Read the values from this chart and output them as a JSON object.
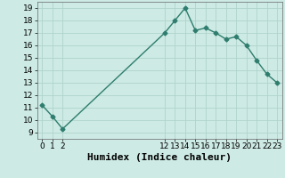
{
  "x": [
    0,
    1,
    2,
    12,
    13,
    14,
    15,
    16,
    17,
    18,
    19,
    20,
    21,
    22,
    23
  ],
  "y": [
    11.2,
    10.3,
    9.3,
    17.0,
    18.0,
    19.0,
    17.2,
    17.4,
    17.0,
    16.5,
    16.7,
    16.0,
    14.8,
    13.7,
    13.0
  ],
  "xlabel": "Humidex (Indice chaleur)",
  "xlim": [
    -0.5,
    23.5
  ],
  "ylim": [
    8.5,
    19.5
  ],
  "yticks": [
    9,
    10,
    11,
    12,
    13,
    14,
    15,
    16,
    17,
    18,
    19
  ],
  "xticks": [
    0,
    1,
    2,
    12,
    13,
    14,
    15,
    16,
    17,
    18,
    19,
    20,
    21,
    22,
    23
  ],
  "line_color": "#2e7d6e",
  "bg_color": "#cdeae4",
  "grid_color": "#aed4cc",
  "marker": "D",
  "markersize": 2.5,
  "linewidth": 1.0,
  "xlabel_fontsize": 8,
  "tick_fontsize": 6.5
}
